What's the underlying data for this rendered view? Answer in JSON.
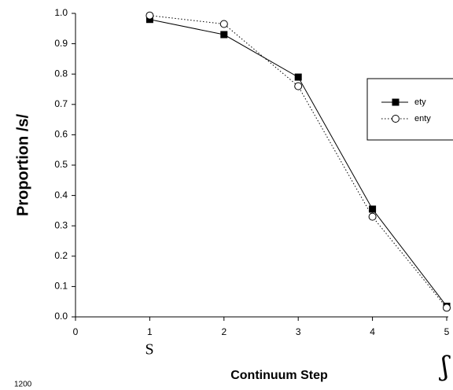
{
  "chart_data": {
    "type": "line",
    "x_label": "Continuum Step",
    "y_label": "Proportion /s/",
    "x": [
      1,
      2,
      3,
      4,
      5
    ],
    "series": [
      {
        "name": "ety",
        "color": "#000000",
        "marker": "square",
        "line_style": "solid",
        "values": [
          0.98,
          0.93,
          0.79,
          0.355,
          0.035
        ]
      },
      {
        "name": "enty",
        "color": "#000000",
        "marker": "circle",
        "line_style": "dotted",
        "values": [
          0.993,
          0.965,
          0.76,
          0.33,
          0.03
        ]
      }
    ],
    "xlim": [
      0,
      5
    ],
    "xticks": [
      0,
      1,
      2,
      3,
      4,
      5
    ],
    "ylim": [
      0,
      1
    ],
    "yticks": [
      {
        "value": 0,
        "label": "0.0"
      },
      0.1,
      0.2,
      0.3,
      0.4,
      0.5,
      0.6,
      0.7,
      0.8,
      0.9,
      {
        "value": 1,
        "label": "1.0"
      }
    ],
    "grid": false,
    "legend": "right",
    "annotations": [
      "S",
      "ʃ",
      "1200"
    ]
  }
}
